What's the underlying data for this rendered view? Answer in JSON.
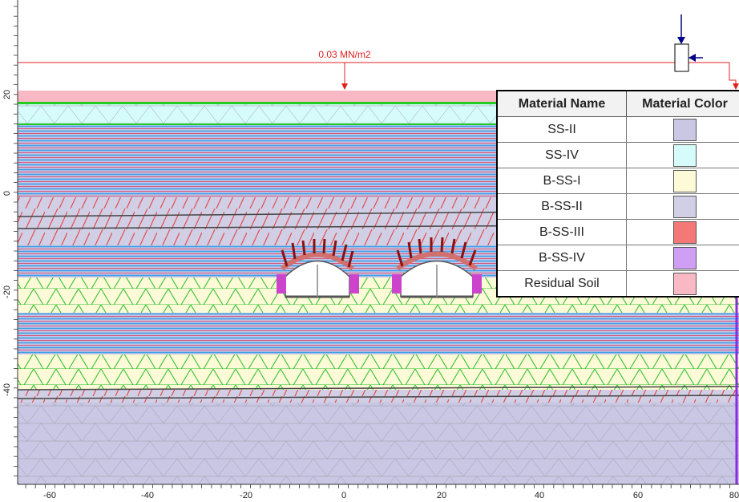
{
  "load": {
    "label": "0.03 MN/m2"
  },
  "axes": {
    "x_ticks": [
      "-60",
      "-40",
      "-20",
      "0",
      "20",
      "40",
      "60",
      "80"
    ],
    "y_ticks": [
      "20",
      "0",
      "-20",
      "-40"
    ]
  },
  "legend": {
    "header_name": "Material Name",
    "header_color": "Material Color",
    "rows": [
      {
        "name": "SS-II",
        "color": "#c9c7e3"
      },
      {
        "name": "SS-IV",
        "color": "#d5fbfb"
      },
      {
        "name": "B-SS-I",
        "color": "#fdfad8"
      },
      {
        "name": "B-SS-II",
        "color": "#d0cfe6"
      },
      {
        "name": "B-SS-III",
        "color": "#f47876"
      },
      {
        "name": "B-SS-IV",
        "color": "#cf9ff5"
      },
      {
        "name": "Residual Soil",
        "color": "#f8b8c4"
      }
    ]
  }
}
